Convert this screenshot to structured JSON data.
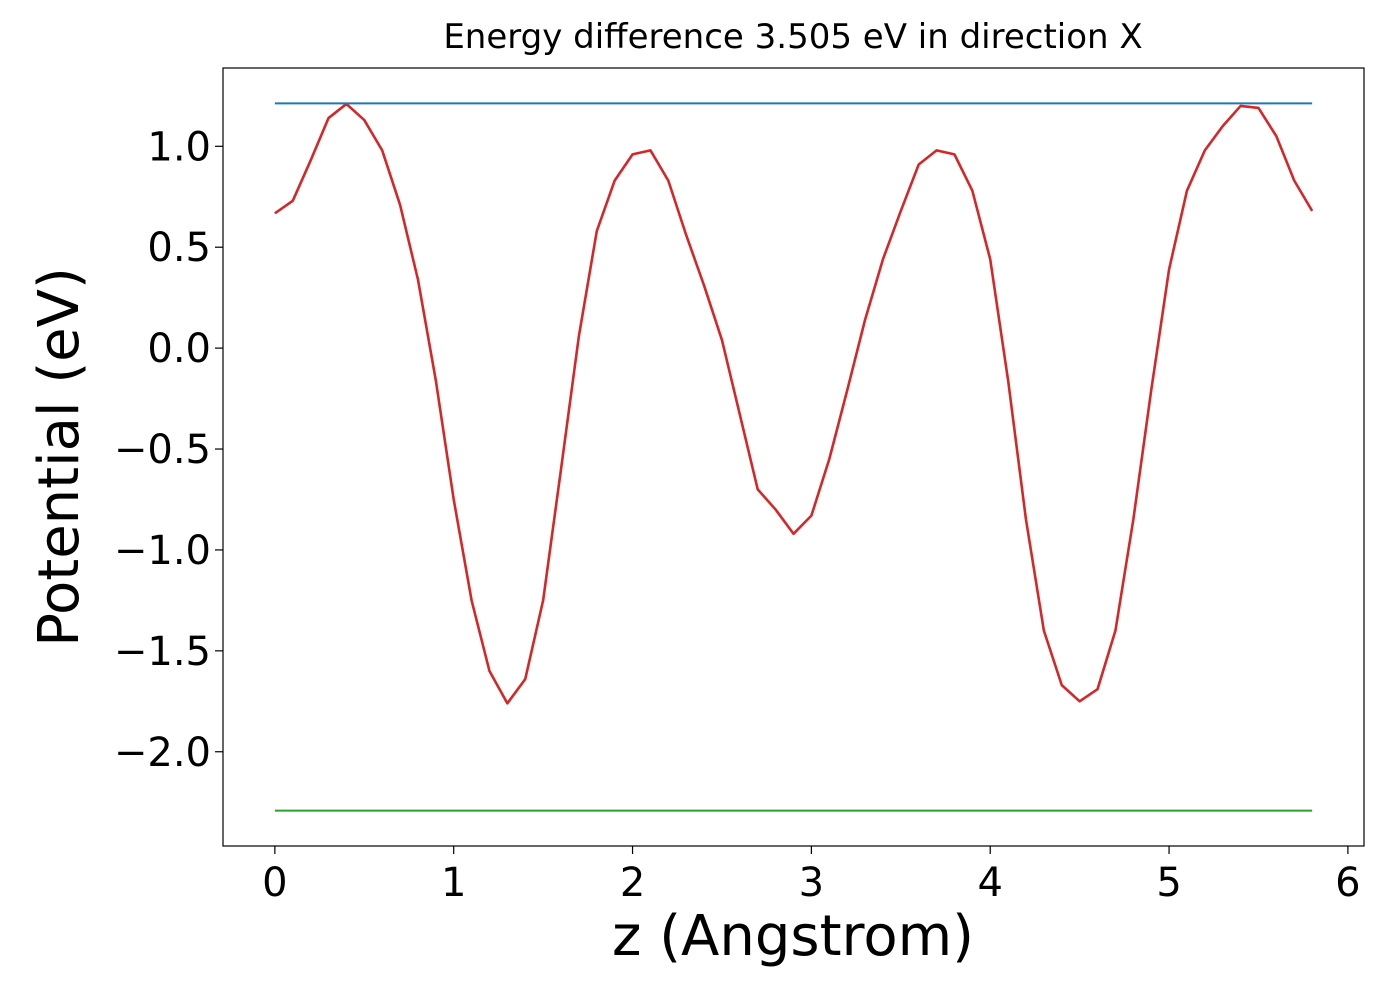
{
  "chart_data": {
    "type": "line",
    "title": "Energy difference 3.505 eV in direction X",
    "xlabel": "z (Angstrom)",
    "ylabel": "Potential (eV)",
    "xlim": [
      -0.29,
      6.09
    ],
    "ylim": [
      -2.467,
      1.388
    ],
    "xticks": [
      0,
      1,
      2,
      3,
      4,
      5,
      6
    ],
    "yticks": [
      {
        "value": -2,
        "label": "−2.0"
      },
      {
        "value": -1.5,
        "label": "−1.5"
      },
      {
        "value": -1,
        "label": "−1.0"
      },
      {
        "value": -0.5,
        "label": "−0.5"
      },
      {
        "value": 0,
        "label": "0.0"
      },
      0.5,
      {
        "value": 1,
        "label": "1.0"
      }
    ],
    "grid": false,
    "series": [
      {
        "color": "#d62728",
        "x": [
          0,
          0.1,
          0.2,
          0.3,
          0.4,
          0.5,
          0.6,
          0.7,
          0.8,
          0.9,
          1.0,
          1.1,
          1.2,
          1.3,
          1.4,
          1.5,
          1.6,
          1.7,
          1.8,
          1.9,
          2.0,
          2.1,
          2.2,
          2.3,
          2.4,
          2.5,
          2.6,
          2.7,
          2.8,
          2.9,
          3.0,
          3.1,
          3.2,
          3.3,
          3.4,
          3.5,
          3.6,
          3.7,
          3.8,
          3.9,
          4.0,
          4.1,
          4.2,
          4.3,
          4.4,
          4.5,
          4.6,
          4.7,
          4.8,
          4.9,
          5.0,
          5.1,
          5.2,
          5.3,
          5.4,
          5.5,
          5.6,
          5.7,
          5.8
        ],
        "values": [
          0.668,
          0.73,
          0.93,
          1.14,
          1.21,
          1.13,
          0.98,
          0.71,
          0.34,
          -0.16,
          -0.75,
          -1.25,
          -1.6,
          -1.76,
          -1.64,
          -1.25,
          -0.6,
          0.06,
          0.58,
          0.83,
          0.96,
          0.98,
          0.83,
          0.56,
          0.31,
          0.04,
          -0.33,
          -0.7,
          -0.8,
          -0.92,
          -0.83,
          -0.55,
          -0.21,
          0.14,
          0.44,
          0.68,
          0.91,
          0.98,
          0.96,
          0.78,
          0.44,
          -0.16,
          -0.85,
          -1.4,
          -1.67,
          -1.75,
          -1.69,
          -1.4,
          -0.85,
          -0.21,
          0.39,
          0.78,
          0.98,
          1.1,
          1.2,
          1.19,
          1.05,
          0.83,
          0.68
        ]
      },
      {
        "color": "#1f77b4",
        "x": [
          0,
          5.8
        ],
        "values": [
          1.213,
          1.213
        ]
      },
      {
        "color": "#2ca02c",
        "x": [
          0,
          5.8
        ],
        "values": [
          -2.292,
          -2.292
        ]
      }
    ]
  }
}
